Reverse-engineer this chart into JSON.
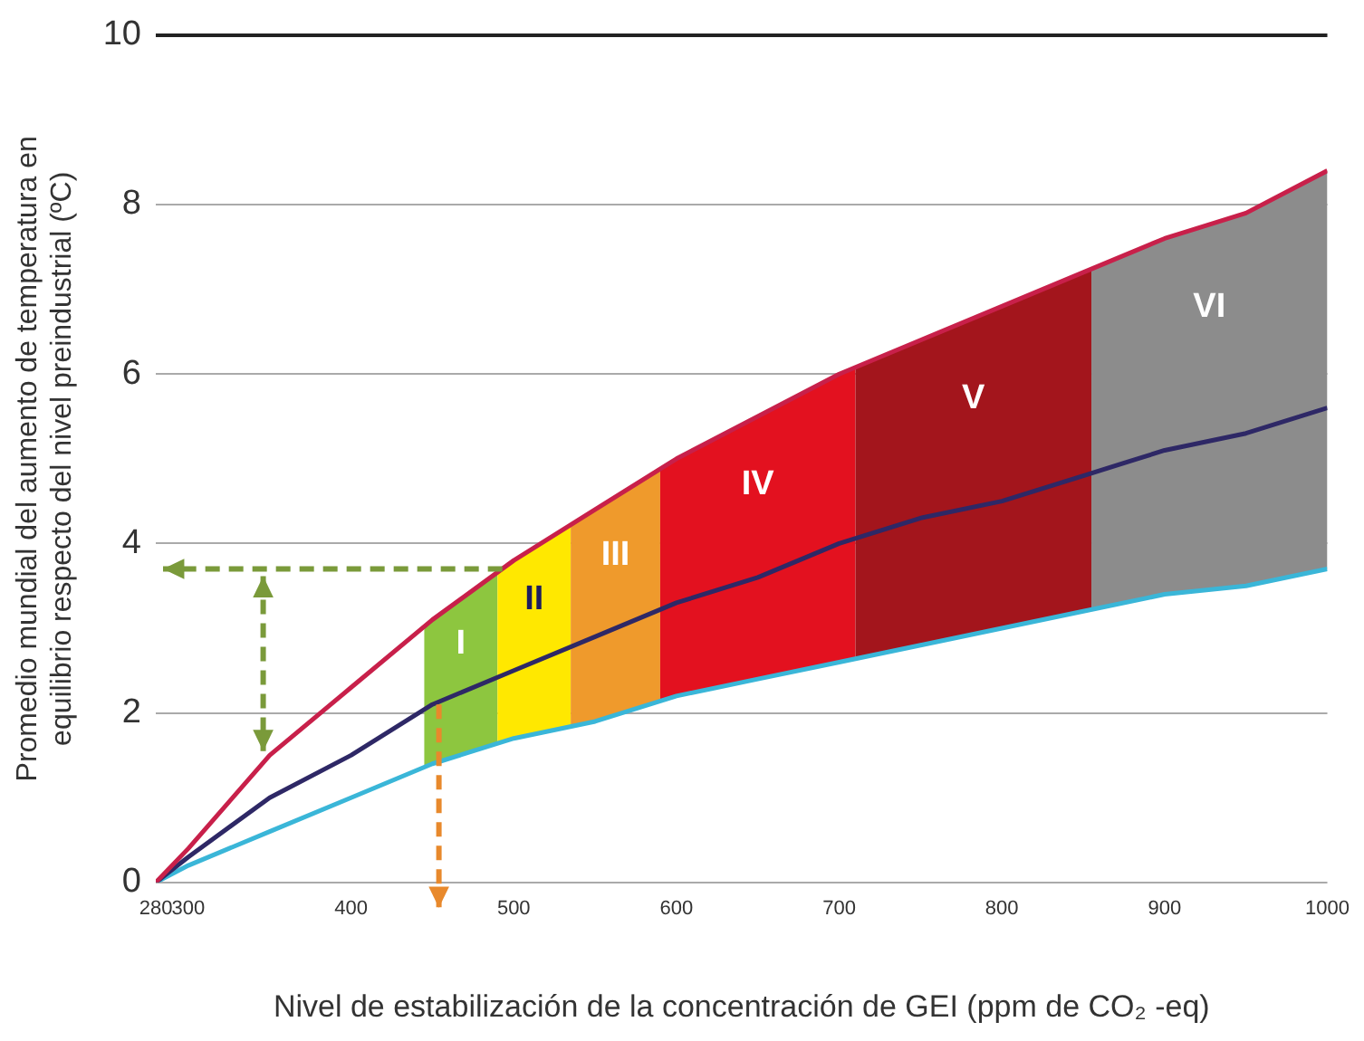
{
  "chart_data": {
    "type": "line",
    "xlabel": "Nivel de estabilización de la concentración de GEI (ppm de CO₂ -eq)",
    "ylabel": "Promedio mundial del aumento de temperatura en\nequilibrio respecto del nivel preindustrial (ºC)",
    "x": [
      280,
      300,
      350,
      400,
      450,
      500,
      550,
      600,
      650,
      700,
      750,
      800,
      850,
      900,
      950,
      1000
    ],
    "series": [
      {
        "type": "line",
        "color": "#c8204a",
        "values": [
          0,
          0.4,
          1.5,
          2.3,
          3.1,
          3.8,
          4.4,
          5.0,
          5.5,
          6.0,
          6.4,
          6.8,
          7.2,
          7.6,
          7.9,
          8.4
        ]
      },
      {
        "type": "line",
        "color": "#2e2866",
        "values": [
          0,
          0.3,
          1.0,
          1.5,
          2.1,
          2.5,
          2.9,
          3.3,
          3.6,
          4.0,
          4.3,
          4.5,
          4.8,
          5.1,
          5.3,
          5.6
        ]
      },
      {
        "type": "line",
        "color": "#3ab6d8",
        "values": [
          0,
          0.2,
          0.6,
          1.0,
          1.4,
          1.7,
          1.9,
          2.2,
          2.4,
          2.6,
          2.8,
          3.0,
          3.2,
          3.4,
          3.5,
          3.7
        ]
      }
    ],
    "bands": [
      {
        "axis": "x",
        "from": 445,
        "to": 490,
        "label": "I",
        "color": "#8dc63f"
      },
      {
        "axis": "x",
        "from": 490,
        "to": 535,
        "label": "II",
        "color": "#ffe800"
      },
      {
        "axis": "x",
        "from": 535,
        "to": 590,
        "label": "III",
        "color": "#ef9a2c"
      },
      {
        "axis": "x",
        "from": 590,
        "to": 710,
        "label": "IV",
        "color": "#e3111f"
      },
      {
        "axis": "x",
        "from": 710,
        "to": 855,
        "label": "V",
        "color": "#a3151c"
      },
      {
        "axis": "x",
        "from": 855,
        "to": 1000,
        "label": "VI",
        "color": "#8c8c8c"
      }
    ],
    "xlim": [
      280,
      1000
    ],
    "xticks": [
      280,
      300,
      400,
      500,
      600,
      700,
      800,
      900,
      1000
    ],
    "ylim": [
      0,
      10
    ],
    "yticks": [
      0,
      2,
      4,
      6,
      8,
      10
    ],
    "grid": "y",
    "legend": false,
    "marker": "none",
    "line_style": "solid"
  }
}
